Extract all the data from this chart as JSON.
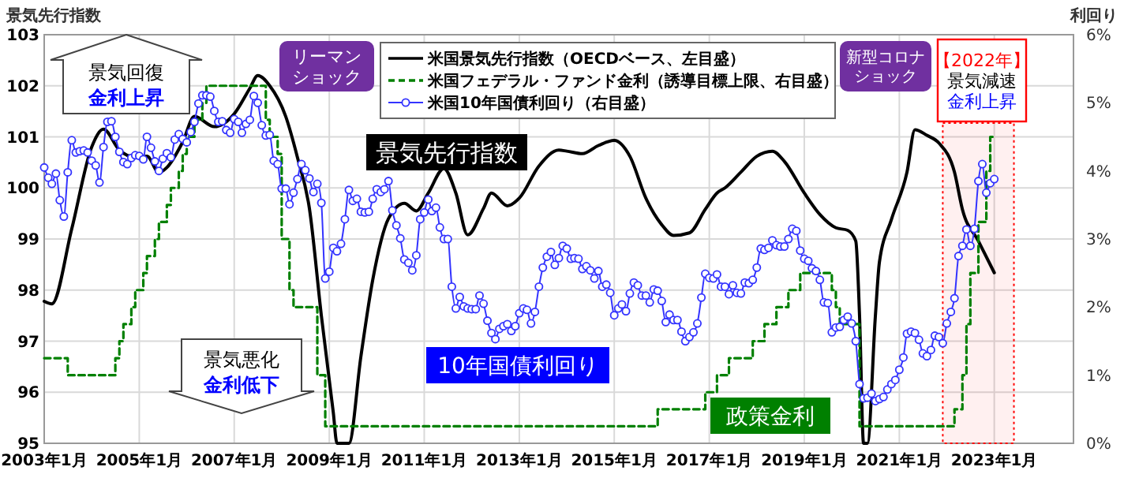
{
  "chart_data": {
    "type": "line",
    "ylabel": "景気先行指数",
    "y2label": "利回り",
    "xlim": [
      "2003-01",
      "2024-09"
    ],
    "xticks": [
      {
        "value": "2003-01",
        "label": "2003年1月"
      },
      {
        "value": "2005-01",
        "label": "2005年1月"
      },
      {
        "value": "2007-01",
        "label": "2007年1月"
      },
      {
        "value": "2009-01",
        "label": "2009年1月"
      },
      {
        "value": "2011-01",
        "label": "2011年1月"
      },
      {
        "value": "2013-01",
        "label": "2013年1月"
      },
      {
        "value": "2015-01",
        "label": "2015年1月"
      },
      {
        "value": "2017-01",
        "label": "2017年1月"
      },
      {
        "value": "2019-01",
        "label": "2019年1月"
      },
      {
        "value": "2021-01",
        "label": "2021年1月"
      },
      {
        "value": "2023-01",
        "label": "2023年1月"
      }
    ],
    "ylim": [
      95,
      103
    ],
    "yticks": [
      95,
      96,
      97,
      98,
      99,
      100,
      101,
      102,
      103
    ],
    "y2lim": [
      0,
      6
    ],
    "y2ticks": [
      {
        "value": 0,
        "label": "0%"
      },
      {
        "value": 1,
        "label": "1%"
      },
      {
        "value": 2,
        "label": "2%"
      },
      {
        "value": 3,
        "label": "3%"
      },
      {
        "value": 4,
        "label": "4%"
      },
      {
        "value": 5,
        "label": "5%"
      },
      {
        "value": 6,
        "label": "6%"
      }
    ],
    "grid": true,
    "legend": "top",
    "x": [
      "2003-01",
      "2003-02",
      "2003-03",
      "2003-04",
      "2003-05",
      "2003-06",
      "2003-07",
      "2003-08",
      "2003-09",
      "2003-10",
      "2003-11",
      "2003-12",
      "2004-01",
      "2004-02",
      "2004-03",
      "2004-04",
      "2004-05",
      "2004-06",
      "2004-07",
      "2004-08",
      "2004-09",
      "2004-10",
      "2004-11",
      "2004-12",
      "2005-01",
      "2005-02",
      "2005-03",
      "2005-04",
      "2005-05",
      "2005-06",
      "2005-07",
      "2005-08",
      "2005-09",
      "2005-10",
      "2005-11",
      "2005-12",
      "2006-01",
      "2006-02",
      "2006-03",
      "2006-04",
      "2006-05",
      "2006-06",
      "2006-07",
      "2006-08",
      "2006-09",
      "2006-10",
      "2006-11",
      "2006-12",
      "2007-01",
      "2007-02",
      "2007-03",
      "2007-04",
      "2007-05",
      "2007-06",
      "2007-07",
      "2007-08",
      "2007-09",
      "2007-10",
      "2007-11",
      "2007-12",
      "2008-01",
      "2008-02",
      "2008-03",
      "2008-04",
      "2008-05",
      "2008-06",
      "2008-07",
      "2008-08",
      "2008-09",
      "2008-10",
      "2008-11",
      "2008-12",
      "2009-01",
      "2009-02",
      "2009-03",
      "2009-04",
      "2009-05",
      "2009-06",
      "2009-07",
      "2009-08",
      "2009-09",
      "2009-10",
      "2009-11",
      "2009-12",
      "2010-01",
      "2010-02",
      "2010-03",
      "2010-04",
      "2010-05",
      "2010-06",
      "2010-07",
      "2010-08",
      "2010-09",
      "2010-10",
      "2010-11",
      "2010-12",
      "2011-01",
      "2011-02",
      "2011-03",
      "2011-04",
      "2011-05",
      "2011-06",
      "2011-07",
      "2011-08",
      "2011-09",
      "2011-10",
      "2011-11",
      "2011-12",
      "2012-01",
      "2012-02",
      "2012-03",
      "2012-04",
      "2012-05",
      "2012-06",
      "2012-07",
      "2012-08",
      "2012-09",
      "2012-10",
      "2012-11",
      "2012-12",
      "2013-01",
      "2013-02",
      "2013-03",
      "2013-04",
      "2013-05",
      "2013-06",
      "2013-07",
      "2013-08",
      "2013-09",
      "2013-10",
      "2013-11",
      "2013-12",
      "2014-01",
      "2014-02",
      "2014-03",
      "2014-04",
      "2014-05",
      "2014-06",
      "2014-07",
      "2014-08",
      "2014-09",
      "2014-10",
      "2014-11",
      "2014-12",
      "2015-01",
      "2015-02",
      "2015-03",
      "2015-04",
      "2015-05",
      "2015-06",
      "2015-07",
      "2015-08",
      "2015-09",
      "2015-10",
      "2015-11",
      "2015-12",
      "2016-01",
      "2016-02",
      "2016-03",
      "2016-04",
      "2016-05",
      "2016-06",
      "2016-07",
      "2016-08",
      "2016-09",
      "2016-10",
      "2016-11",
      "2016-12",
      "2017-01",
      "2017-02",
      "2017-03",
      "2017-04",
      "2017-05",
      "2017-06",
      "2017-07",
      "2017-08",
      "2017-09",
      "2017-10",
      "2017-11",
      "2017-12",
      "2018-01",
      "2018-02",
      "2018-03",
      "2018-04",
      "2018-05",
      "2018-06",
      "2018-07",
      "2018-08",
      "2018-09",
      "2018-10",
      "2018-11",
      "2018-12",
      "2019-01",
      "2019-02",
      "2019-03",
      "2019-04",
      "2019-05",
      "2019-06",
      "2019-07",
      "2019-08",
      "2019-09",
      "2019-10",
      "2019-11",
      "2019-12",
      "2020-01",
      "2020-02",
      "2020-03",
      "2020-04",
      "2020-05",
      "2020-06",
      "2020-07",
      "2020-08",
      "2020-09",
      "2020-10",
      "2020-11",
      "2020-12",
      "2021-01",
      "2021-02",
      "2021-03",
      "2021-04",
      "2021-05",
      "2021-06",
      "2021-07",
      "2021-08",
      "2021-09",
      "2021-10",
      "2021-11",
      "2021-12",
      "2022-01",
      "2022-02",
      "2022-03",
      "2022-04",
      "2022-05",
      "2022-06",
      "2022-07",
      "2022-08",
      "2022-09",
      "2022-10",
      "2022-11",
      "2022-12",
      "2023-01"
    ],
    "series": [
      {
        "name": "米国景気先行指数（OECDベース、左目盛）",
        "color": "#000000",
        "x": [
          "2003-01",
          "2003-03",
          "2003-08",
          "2004-01",
          "2004-04",
          "2004-08",
          "2004-12",
          "2005-03",
          "2005-06",
          "2005-08",
          "2005-12",
          "2006-03",
          "2006-08",
          "2007-01",
          "2007-05",
          "2007-07",
          "2007-10",
          "2008-02",
          "2008-05",
          "2008-08",
          "2008-11",
          "2009-02",
          "2009-03",
          "2009-06",
          "2009-09",
          "2009-12",
          "2010-04",
          "2010-08",
          "2010-11",
          "2011-02",
          "2011-06",
          "2011-09",
          "2011-12",
          "2012-04",
          "2012-06",
          "2012-10",
          "2013-01",
          "2013-06",
          "2013-11",
          "2014-01",
          "2014-05",
          "2014-09",
          "2015-01",
          "2015-05",
          "2015-09",
          "2016-01",
          "2016-04",
          "2016-08",
          "2016-12",
          "2017-03",
          "2017-05",
          "2017-09",
          "2018-01",
          "2018-05",
          "2018-08",
          "2019-01",
          "2019-05",
          "2019-09",
          "2019-12",
          "2020-02",
          "2020-03",
          "2020-04",
          "2020-05",
          "2020-07",
          "2020-08",
          "2020-11",
          "2021-03",
          "2021-05",
          "2021-08",
          "2021-11",
          "2022-03",
          "2022-05",
          "2022-09",
          "2023-01"
        ],
        "values": [
          97.78,
          97.73,
          99.2,
          100.8,
          101.15,
          100.74,
          100.6,
          100.62,
          100.3,
          100.4,
          100.9,
          101.4,
          101.2,
          101.45,
          101.95,
          102.2,
          102.0,
          101.4,
          100.6,
          99.6,
          97.5,
          95.6,
          95,
          95,
          96.7,
          98.2,
          99.4,
          99.7,
          99.55,
          99.9,
          100.38,
          99.9,
          99.08,
          99.6,
          99.9,
          99.65,
          99.8,
          100.43,
          100.74,
          100.72,
          100.67,
          100.83,
          100.93,
          100.62,
          99.8,
          99.28,
          99.07,
          99.12,
          99.58,
          99.9,
          100.0,
          100.31,
          100.62,
          100.72,
          100.52,
          99.9,
          99.48,
          99.22,
          99.17,
          98.96,
          97.5,
          95,
          95,
          97.5,
          98.55,
          99.38,
          100.31,
          101.14,
          101.03,
          100.88,
          100.31,
          99.58,
          98.96,
          98.34
        ]
      },
      {
        "name": "米国フェデラル・ファンド金利（誘導目標上限、右目盛）",
        "type": "step",
        "axis": "y2",
        "color": "#008000",
        "line_style": "dashed",
        "x": [
          "2003-01",
          "2003-07",
          "2004-07",
          "2004-08",
          "2004-09",
          "2004-11",
          "2004-12",
          "2005-02",
          "2005-03",
          "2005-05",
          "2005-06",
          "2005-08",
          "2005-09",
          "2005-11",
          "2005-12",
          "2006-01",
          "2006-03",
          "2006-05",
          "2006-06",
          "2007-09",
          "2007-10",
          "2007-12",
          "2008-01",
          "2008-03",
          "2008-04",
          "2008-10",
          "2008-12",
          "2015-12",
          "2016-12",
          "2017-03",
          "2017-06",
          "2017-12",
          "2018-03",
          "2018-06",
          "2018-09",
          "2018-12",
          "2019-08",
          "2019-09",
          "2019-10",
          "2020-03",
          "2022-03",
          "2022-05",
          "2022-06",
          "2022-07",
          "2022-09",
          "2022-11",
          "2022-12",
          "2023-01"
        ],
        "values": [
          1.25,
          1.0,
          1.25,
          1.5,
          1.75,
          2.0,
          2.25,
          2.5,
          2.75,
          3.0,
          3.25,
          3.5,
          3.75,
          4.0,
          4.25,
          4.5,
          4.75,
          5.0,
          5.25,
          4.75,
          4.5,
          4.25,
          3.0,
          2.25,
          2.0,
          1.0,
          0.25,
          0.5,
          0.75,
          1.0,
          1.25,
          1.5,
          1.75,
          2.0,
          2.25,
          2.5,
          2.25,
          2.0,
          1.75,
          0.25,
          0.5,
          1.0,
          1.75,
          2.5,
          3.25,
          4.0,
          4.5,
          4.5
        ]
      },
      {
        "name": "米国10年国債利回り（右目盛）",
        "type": "line",
        "axis": "y2",
        "color": "#3333ff",
        "marker": "circle",
        "values": [
          4.05,
          3.9,
          3.81,
          3.96,
          3.57,
          3.33,
          3.98,
          4.45,
          4.27,
          4.29,
          4.3,
          4.27,
          4.15,
          4.08,
          3.83,
          4.35,
          4.72,
          4.73,
          4.5,
          4.28,
          4.13,
          4.1,
          4.19,
          4.23,
          4.22,
          4.17,
          4.5,
          4.34,
          4.14,
          4.0,
          4.18,
          4.26,
          4.2,
          4.46,
          4.54,
          4.47,
          4.42,
          4.57,
          4.72,
          4.99,
          5.11,
          5.11,
          5.09,
          4.88,
          4.72,
          4.73,
          4.6,
          4.56,
          4.76,
          4.72,
          4.56,
          4.69,
          4.75,
          5.1,
          5.0,
          4.67,
          4.52,
          4.53,
          4.15,
          4.1,
          3.74,
          3.74,
          3.51,
          3.68,
          3.88,
          4.1,
          4.01,
          3.89,
          3.69,
          3.81,
          3.53,
          2.42,
          2.52,
          2.87,
          2.82,
          2.93,
          3.29,
          3.72,
          3.56,
          3.59,
          3.4,
          3.39,
          3.4,
          3.59,
          3.73,
          3.69,
          3.73,
          3.85,
          3.42,
          3.2,
          3.01,
          2.7,
          2.65,
          2.54,
          2.76,
          3.29,
          3.39,
          3.58,
          3.41,
          3.46,
          3.17,
          3.0,
          3.0,
          2.3,
          1.98,
          2.15,
          2.01,
          1.98,
          1.97,
          1.97,
          2.17,
          2.05,
          1.8,
          1.62,
          1.53,
          1.68,
          1.72,
          1.75,
          1.65,
          1.72,
          1.91,
          1.98,
          1.96,
          1.76,
          1.93,
          2.3,
          2.58,
          2.74,
          2.81,
          2.62,
          2.72,
          2.9,
          2.86,
          2.71,
          2.72,
          2.71,
          2.56,
          2.6,
          2.54,
          2.42,
          2.53,
          2.3,
          2.33,
          2.21,
          1.88,
          1.98,
          2.04,
          1.94,
          2.2,
          2.36,
          2.32,
          2.17,
          2.17,
          2.07,
          2.26,
          2.24,
          2.09,
          1.78,
          1.89,
          1.81,
          1.81,
          1.64,
          1.5,
          1.56,
          1.63,
          1.76,
          2.14,
          2.49,
          2.43,
          2.42,
          2.48,
          2.3,
          2.3,
          2.19,
          2.32,
          2.21,
          2.2,
          2.36,
          2.35,
          2.4,
          2.58,
          2.86,
          2.84,
          2.87,
          2.98,
          2.91,
          2.89,
          2.89,
          3.0,
          3.15,
          3.12,
          2.83,
          2.71,
          2.68,
          2.57,
          2.53,
          2.4,
          2.07,
          2.06,
          1.63,
          1.7,
          1.71,
          1.81,
          1.86,
          1.76,
          1.5,
          0.87,
          0.66,
          0.67,
          0.73,
          0.62,
          0.65,
          0.68,
          0.79,
          0.87,
          0.93,
          1.08,
          1.26,
          1.61,
          1.64,
          1.62,
          1.52,
          1.32,
          1.28,
          1.37,
          1.58,
          1.56,
          1.47,
          1.76,
          1.93,
          2.13,
          2.75,
          2.9,
          3.14,
          2.9,
          3.15,
          3.85,
          4.1,
          3.68,
          3.82,
          3.88
        ]
      }
    ],
    "bands": [
      {
        "axis": "x",
        "from": "2021-12",
        "to": "2023-06",
        "color": "#ff0000"
      }
    ],
    "annotations": [
      "景気回復",
      "金利上昇",
      "景気悪化",
      "金利低下",
      "リーマン",
      "ショック",
      "新型コロナ",
      "ショック",
      "景気先行指数",
      "10年国債利回り",
      "政策金利",
      "【2022年】",
      "景気減速",
      "金利上昇"
    ]
  }
}
